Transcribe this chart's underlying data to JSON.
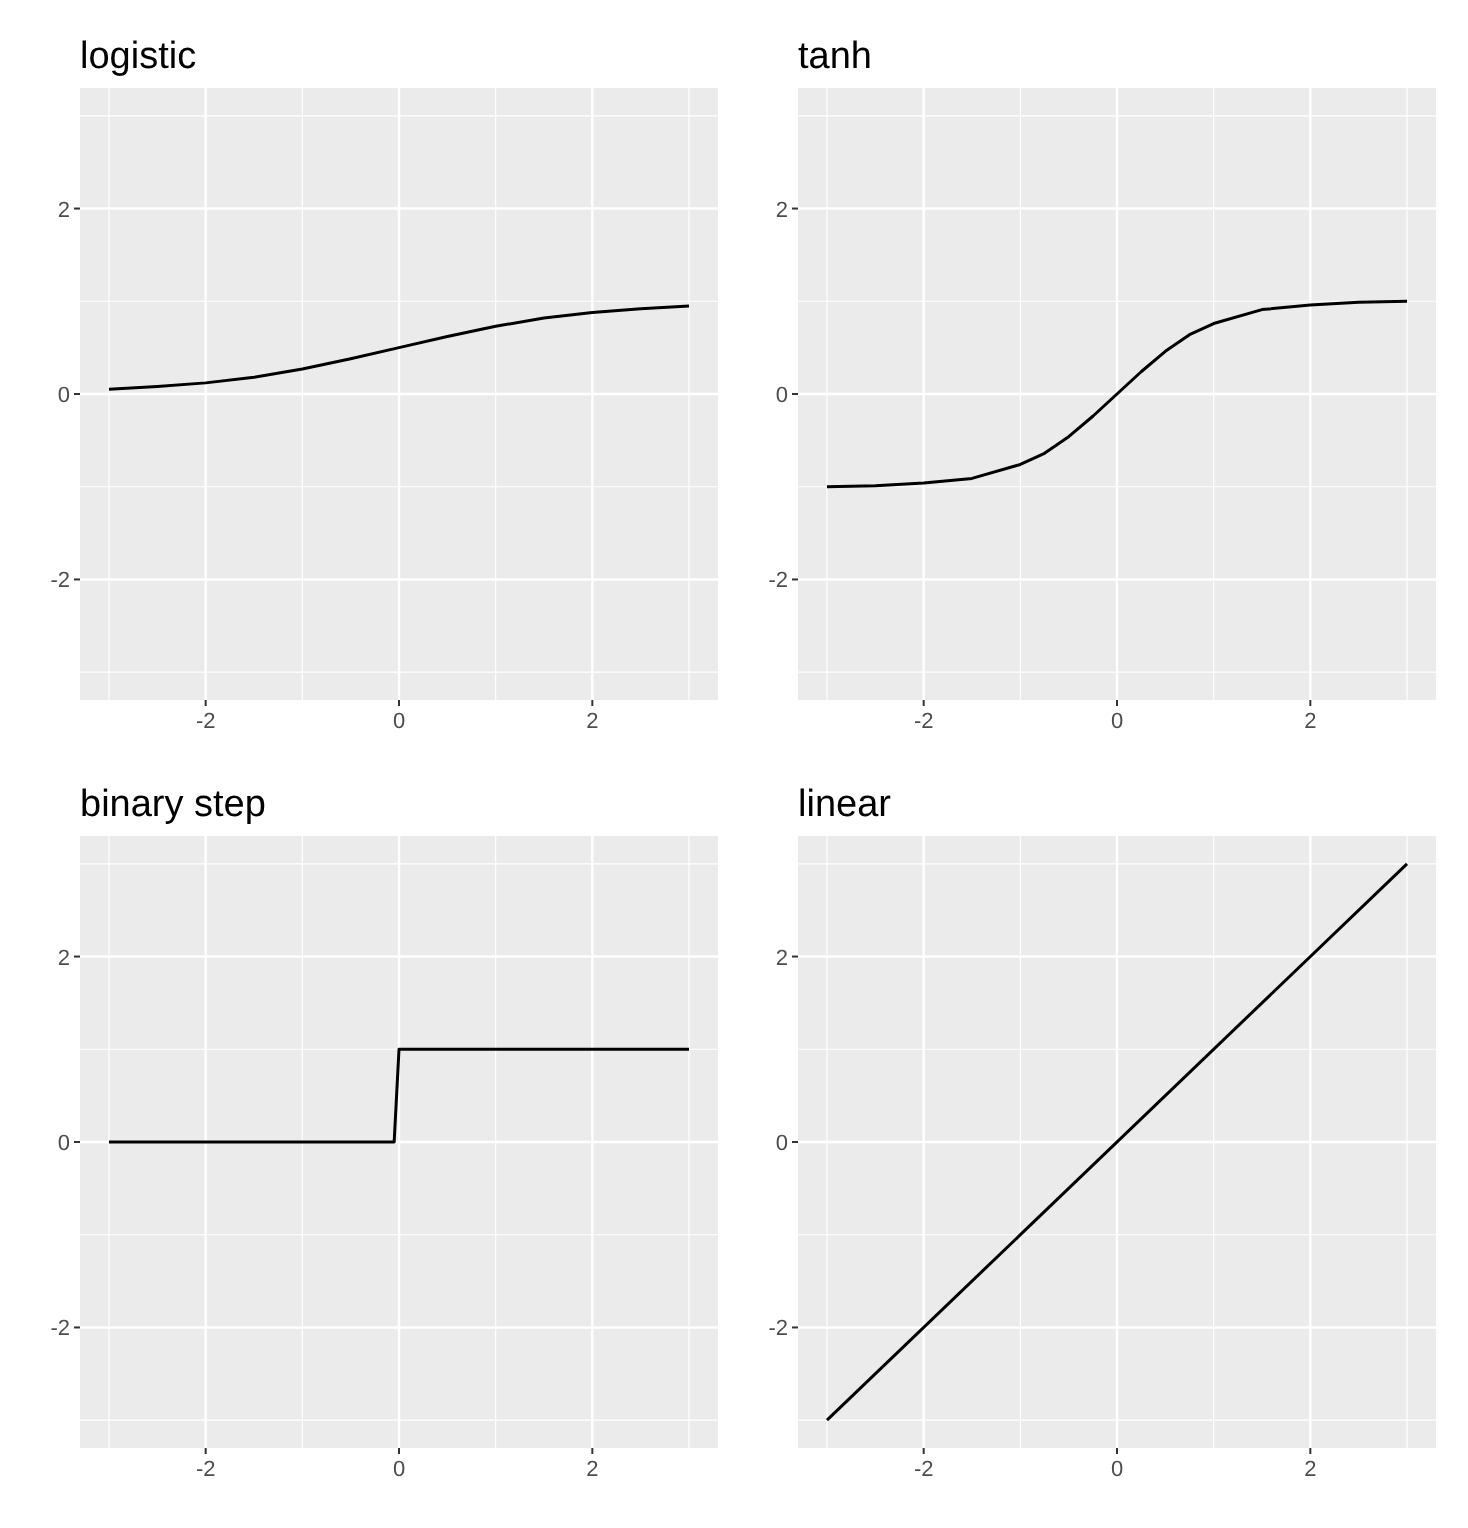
{
  "chart_data": [
    {
      "type": "line",
      "title": "logistic",
      "xlim": [
        -3.3,
        3.3
      ],
      "ylim": [
        -3.3,
        3.3
      ],
      "xticks": [
        -2,
        0,
        2
      ],
      "yticks": [
        -2,
        0,
        2
      ],
      "grid": true,
      "series": [
        {
          "color": "#000000",
          "x": [
            -3,
            -2.5,
            -2,
            -1.5,
            -1,
            -0.5,
            0,
            0.5,
            1,
            1.5,
            2,
            2.5,
            3
          ],
          "values": [
            0.05,
            0.08,
            0.12,
            0.18,
            0.27,
            0.38,
            0.5,
            0.62,
            0.73,
            0.82,
            0.88,
            0.92,
            0.95
          ]
        }
      ]
    },
    {
      "type": "line",
      "title": "tanh",
      "xlim": [
        -3.3,
        3.3
      ],
      "ylim": [
        -3.3,
        3.3
      ],
      "xticks": [
        -2,
        0,
        2
      ],
      "yticks": [
        -2,
        0,
        2
      ],
      "grid": true,
      "series": [
        {
          "color": "#000000",
          "x": [
            -3,
            -2.5,
            -2,
            -1.5,
            -1,
            -0.75,
            -0.5,
            -0.25,
            0,
            0.25,
            0.5,
            0.75,
            1,
            1.5,
            2,
            2.5,
            3
          ],
          "values": [
            -1,
            -0.99,
            -0.96,
            -0.91,
            -0.76,
            -0.64,
            -0.46,
            -0.24,
            0,
            0.24,
            0.46,
            0.64,
            0.76,
            0.91,
            0.96,
            0.99,
            1
          ]
        }
      ]
    },
    {
      "type": "line",
      "title": "binary step",
      "xlim": [
        -3.3,
        3.3
      ],
      "ylim": [
        -3.3,
        3.3
      ],
      "xticks": [
        -2,
        0,
        2
      ],
      "yticks": [
        -2,
        0,
        2
      ],
      "grid": true,
      "series": [
        {
          "color": "#000000",
          "x": [
            -3,
            -0.05,
            0,
            3
          ],
          "values": [
            0,
            0,
            1,
            1
          ]
        }
      ]
    },
    {
      "type": "line",
      "title": "linear",
      "xlim": [
        -3.3,
        3.3
      ],
      "ylim": [
        -3.3,
        3.3
      ],
      "xticks": [
        -2,
        0,
        2
      ],
      "yticks": [
        -2,
        0,
        2
      ],
      "grid": true,
      "series": [
        {
          "color": "#000000",
          "x": [
            -3,
            3
          ],
          "values": [
            -3,
            3
          ]
        }
      ]
    }
  ]
}
